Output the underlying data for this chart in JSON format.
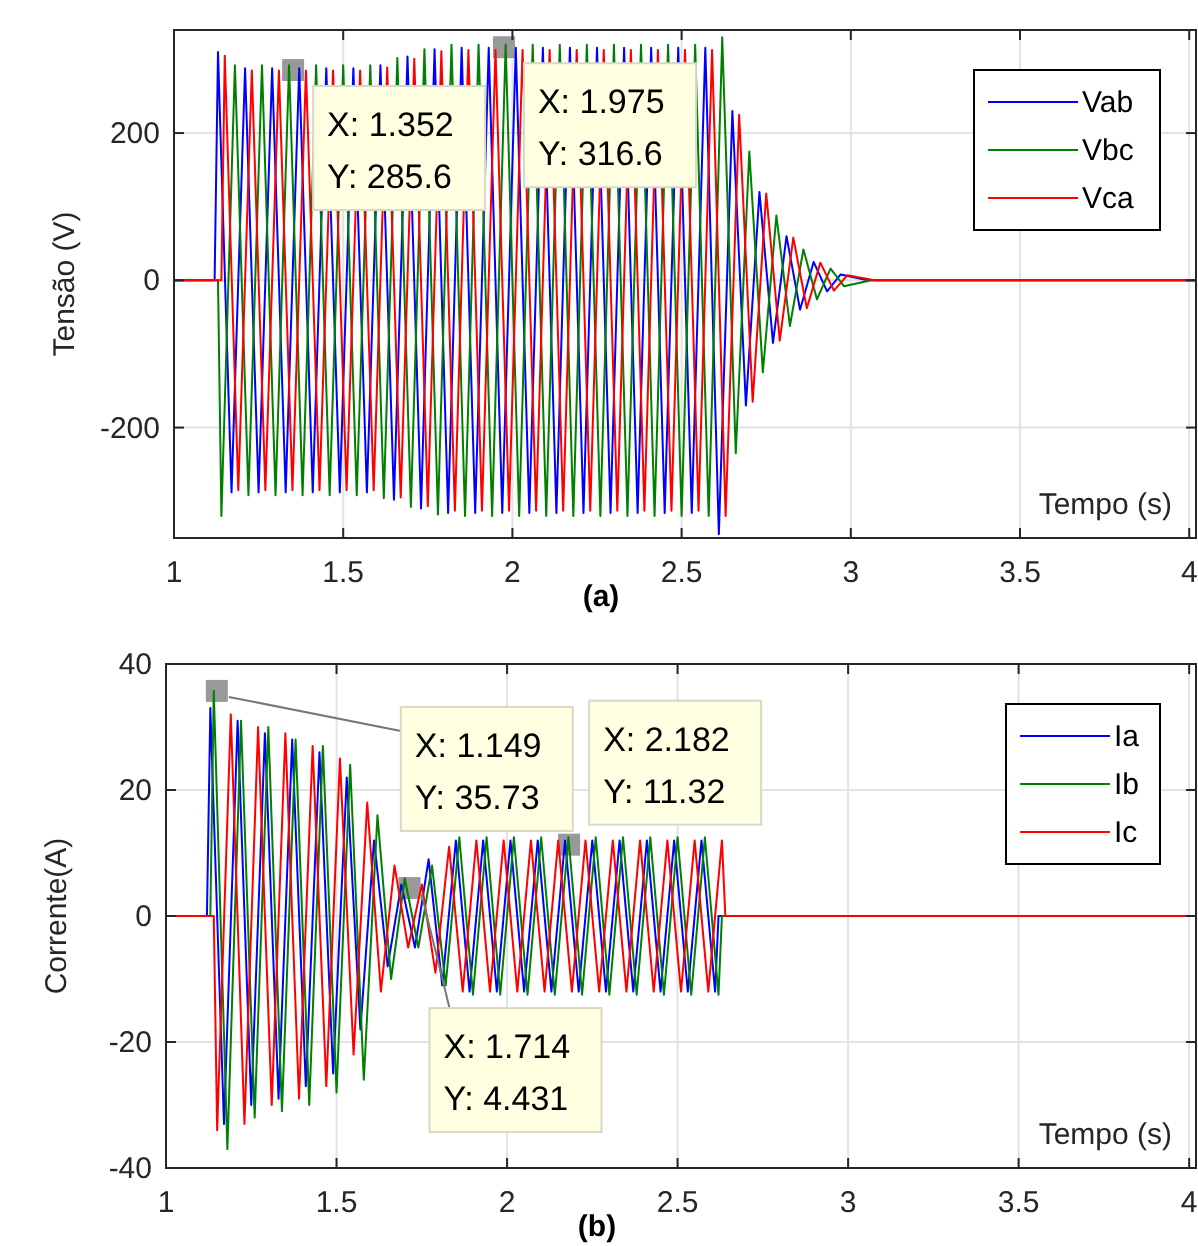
{
  "chart_data": [
    {
      "type": "line",
      "title": "(a)",
      "xlabel": "Tempo (s)",
      "ylabel": "Tensão (V)",
      "xlim": [
        1,
        4.02
      ],
      "xticks": [
        1,
        1.5,
        2,
        2.5,
        3,
        3.5,
        4
      ],
      "ylim": [
        -350,
        340
      ],
      "yticks": [
        -200,
        0,
        200
      ],
      "grid": true,
      "legend": "top right",
      "annotations": [
        {
          "text": "X: 1.352\nY: 285.6",
          "x": 1.352,
          "y": 285.6
        },
        {
          "text": "X: 1.975\nY: 316.6",
          "x": 1.975,
          "y": 316.6
        }
      ],
      "series": [
        {
          "name": "Vab",
          "color": "#0000ff",
          "x": [
            1,
            1.12,
            1.13,
            1.17,
            1.21,
            1.25,
            1.29,
            1.33,
            1.37,
            1.41,
            1.45,
            1.49,
            1.53,
            1.57,
            1.61,
            1.65,
            1.69,
            1.73,
            1.77,
            1.81,
            1.85,
            1.89,
            1.93,
            1.97,
            2.01,
            2.05,
            2.09,
            2.13,
            2.17,
            2.21,
            2.25,
            2.29,
            2.33,
            2.37,
            2.41,
            2.45,
            2.49,
            2.53,
            2.57,
            2.61,
            2.65,
            2.69,
            2.73,
            2.77,
            2.81,
            2.85,
            2.89,
            2.93,
            2.97,
            3.05,
            4.02
          ],
          "values": [
            0,
            0,
            310,
            -288,
            288,
            -288,
            288,
            -288,
            288,
            -288,
            288,
            -288,
            288,
            -288,
            292,
            -298,
            304,
            -310,
            314,
            -316,
            316,
            -316,
            316,
            -316,
            316,
            -316,
            316,
            -316,
            316,
            -316,
            316,
            -316,
            316,
            -316,
            316,
            -316,
            316,
            -316,
            316,
            -345,
            230,
            -170,
            120,
            -85,
            60,
            -40,
            25,
            -15,
            8,
            0,
            0
          ]
        },
        {
          "name": "Vbc",
          "color": "#008000",
          "x": [
            1,
            1.13,
            1.14,
            1.18,
            1.22,
            1.26,
            1.3,
            1.34,
            1.38,
            1.42,
            1.46,
            1.5,
            1.54,
            1.58,
            1.62,
            1.66,
            1.7,
            1.74,
            1.78,
            1.82,
            1.86,
            1.9,
            1.94,
            1.98,
            2.02,
            2.06,
            2.1,
            2.14,
            2.18,
            2.22,
            2.26,
            2.3,
            2.34,
            2.38,
            2.42,
            2.46,
            2.5,
            2.54,
            2.58,
            2.62,
            2.66,
            2.7,
            2.74,
            2.78,
            2.82,
            2.86,
            2.9,
            2.94,
            2.98,
            3.06,
            4.02
          ],
          "values": [
            0,
            0,
            -320,
            292,
            -292,
            292,
            -292,
            292,
            -292,
            292,
            -292,
            292,
            -292,
            292,
            -296,
            302,
            -308,
            314,
            -318,
            320,
            -320,
            320,
            -320,
            320,
            -320,
            320,
            -320,
            320,
            -320,
            320,
            -320,
            320,
            -320,
            320,
            -320,
            320,
            -320,
            320,
            -320,
            330,
            -235,
            175,
            -125,
            88,
            -62,
            42,
            -26,
            16,
            -8,
            0,
            0
          ]
        },
        {
          "name": "Vca",
          "color": "#ff0000",
          "x": [
            1,
            1.14,
            1.15,
            1.19,
            1.23,
            1.27,
            1.31,
            1.35,
            1.39,
            1.43,
            1.47,
            1.51,
            1.55,
            1.59,
            1.63,
            1.67,
            1.71,
            1.75,
            1.79,
            1.83,
            1.87,
            1.91,
            1.95,
            1.99,
            2.03,
            2.07,
            2.11,
            2.15,
            2.19,
            2.23,
            2.27,
            2.31,
            2.35,
            2.39,
            2.43,
            2.47,
            2.51,
            2.55,
            2.59,
            2.63,
            2.67,
            2.71,
            2.75,
            2.79,
            2.83,
            2.87,
            2.91,
            2.95,
            2.99,
            3.07,
            4.02
          ],
          "values": [
            0,
            0,
            305,
            -285,
            285,
            -285,
            285,
            -285,
            285,
            -285,
            285,
            -285,
            285,
            -285,
            289,
            -295,
            301,
            -307,
            311,
            -313,
            313,
            -313,
            313,
            -313,
            313,
            -313,
            313,
            -313,
            313,
            -313,
            313,
            -313,
            313,
            -313,
            313,
            -313,
            313,
            -313,
            313,
            -320,
            225,
            -165,
            118,
            -82,
            58,
            -38,
            24,
            -14,
            7,
            0,
            0
          ]
        }
      ]
    },
    {
      "type": "line",
      "title": "(b)",
      "xlabel": "Tempo (s)",
      "ylabel": "Corrente(A)",
      "xlim": [
        1,
        4.02
      ],
      "xticks": [
        1,
        1.5,
        2,
        2.5,
        3,
        3.5,
        4
      ],
      "ylim": [
        -40,
        40
      ],
      "yticks": [
        -40,
        -20,
        0,
        20,
        40
      ],
      "grid": true,
      "legend": "top right",
      "annotations": [
        {
          "text": "X: 1.149\nY: 35.73",
          "x": 1.149,
          "y": 35.73
        },
        {
          "text": "X: 1.714\nY: 4.431",
          "x": 1.714,
          "y": 4.431
        },
        {
          "text": "X: 2.182\nY: 11.32",
          "x": 2.182,
          "y": 11.32
        }
      ],
      "series": [
        {
          "name": "Ia",
          "color": "#0000ff",
          "x": [
            1,
            1.12,
            1.13,
            1.17,
            1.21,
            1.25,
            1.29,
            1.33,
            1.37,
            1.41,
            1.45,
            1.49,
            1.53,
            1.57,
            1.61,
            1.65,
            1.69,
            1.73,
            1.77,
            1.81,
            1.85,
            1.89,
            1.93,
            1.97,
            2.01,
            2.05,
            2.09,
            2.13,
            2.17,
            2.21,
            2.25,
            2.29,
            2.33,
            2.37,
            2.41,
            2.45,
            2.49,
            2.53,
            2.57,
            2.61,
            2.62,
            4.02
          ],
          "values": [
            0,
            0,
            33,
            -33,
            31,
            -30,
            29,
            -29,
            28,
            -27,
            26,
            -25,
            22,
            -18,
            12,
            -8,
            5,
            -5,
            9,
            -11,
            12,
            -12,
            12,
            -12,
            12,
            -12,
            12,
            -12,
            12,
            -12,
            12,
            -12,
            12,
            -12,
            12,
            -12,
            12,
            -12,
            12,
            -12,
            0,
            0
          ]
        },
        {
          "name": "Ib",
          "color": "#008000",
          "x": [
            1,
            1.13,
            1.14,
            1.18,
            1.22,
            1.26,
            1.3,
            1.34,
            1.38,
            1.42,
            1.46,
            1.5,
            1.54,
            1.58,
            1.62,
            1.66,
            1.7,
            1.74,
            1.78,
            1.82,
            1.86,
            1.9,
            1.94,
            1.98,
            2.02,
            2.06,
            2.1,
            2.14,
            2.18,
            2.22,
            2.26,
            2.3,
            2.34,
            2.38,
            2.42,
            2.46,
            2.5,
            2.54,
            2.58,
            2.62,
            2.63,
            4.02
          ],
          "values": [
            0,
            0,
            35.7,
            -37,
            31,
            -32,
            30,
            -31,
            28,
            -30,
            27,
            -28,
            24,
            -26,
            16,
            -10,
            6,
            -5,
            8,
            -11,
            12.5,
            -12.5,
            12.5,
            -12.5,
            12.5,
            -12.5,
            12.5,
            -12.5,
            12.5,
            -12.5,
            12.5,
            -12.5,
            12.5,
            -12.5,
            12.5,
            -12.5,
            12.5,
            -12.5,
            12.5,
            -12.5,
            0,
            0
          ]
        },
        {
          "name": "Ic",
          "color": "#ff0000",
          "x": [
            1,
            1.14,
            1.15,
            1.19,
            1.23,
            1.27,
            1.31,
            1.35,
            1.39,
            1.43,
            1.47,
            1.51,
            1.55,
            1.59,
            1.63,
            1.67,
            1.71,
            1.75,
            1.79,
            1.83,
            1.87,
            1.91,
            1.95,
            1.99,
            2.03,
            2.07,
            2.11,
            2.15,
            2.19,
            2.23,
            2.27,
            2.31,
            2.35,
            2.39,
            2.43,
            2.47,
            2.51,
            2.55,
            2.59,
            2.63,
            2.64,
            4.02
          ],
          "values": [
            0,
            0,
            -34,
            32,
            -33,
            30,
            -30,
            29,
            -29,
            27,
            -27,
            25,
            -22,
            18,
            -12,
            8,
            -5,
            5,
            -9,
            11,
            -12,
            12,
            -12,
            12,
            -12,
            12,
            -12,
            12,
            -12,
            12,
            -12,
            12,
            -12,
            12,
            -12,
            12,
            -12,
            12,
            -12,
            12,
            0,
            0
          ]
        }
      ]
    }
  ]
}
